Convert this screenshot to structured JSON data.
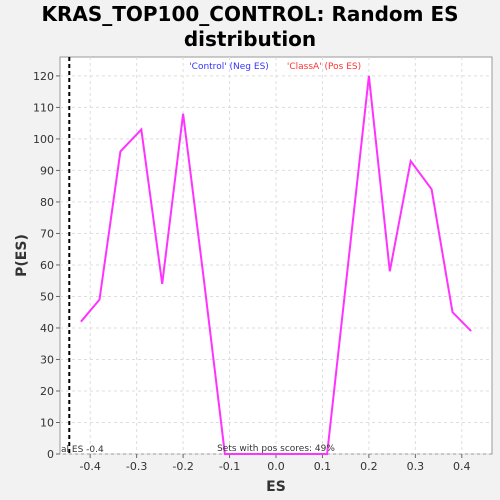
{
  "chart_data": {
    "type": "line",
    "title_line1": "KRAS_TOP100_CONTROL: Random ES",
    "title_line2": "distribution",
    "xlabel": "ES",
    "ylabel": "P(ES)",
    "xlim": [
      -0.465,
      0.465
    ],
    "ylim": [
      0,
      126
    ],
    "x_ticks": [
      -0.4,
      -0.3,
      -0.2,
      -0.1,
      0.0,
      0.1,
      0.2,
      0.3,
      0.4
    ],
    "x_tick_labels": [
      "-0.4",
      "-0.3",
      "-0.2",
      "-0.1",
      "0.0",
      "0.1",
      "0.2",
      "0.3",
      "0.4"
    ],
    "y_ticks": [
      0,
      10,
      20,
      30,
      40,
      50,
      60,
      70,
      80,
      90,
      100,
      110,
      120
    ],
    "grid": true,
    "legend": [
      {
        "label": "'Control' (Neg ES)",
        "color": "#3333ff"
      },
      {
        "label": "'ClassA' (Pos ES)",
        "color": "#ff3333"
      }
    ],
    "series": [
      {
        "color": "#ff33ff",
        "x": [
          -0.42,
          -0.38,
          -0.335,
          -0.29,
          -0.245,
          -0.2,
          -0.155,
          -0.11,
          0.11,
          0.155,
          0.2,
          0.245,
          0.29,
          0.335,
          0.38,
          0.42
        ],
        "y": [
          42,
          49,
          96,
          103,
          54,
          108,
          55,
          0,
          0,
          60,
          120,
          58,
          93,
          84,
          45,
          39
        ]
      }
    ],
    "observed_es": {
      "x": -0.445,
      "label": "al ES -0.4"
    },
    "annotation": "Sets with pos scores: 49%"
  }
}
